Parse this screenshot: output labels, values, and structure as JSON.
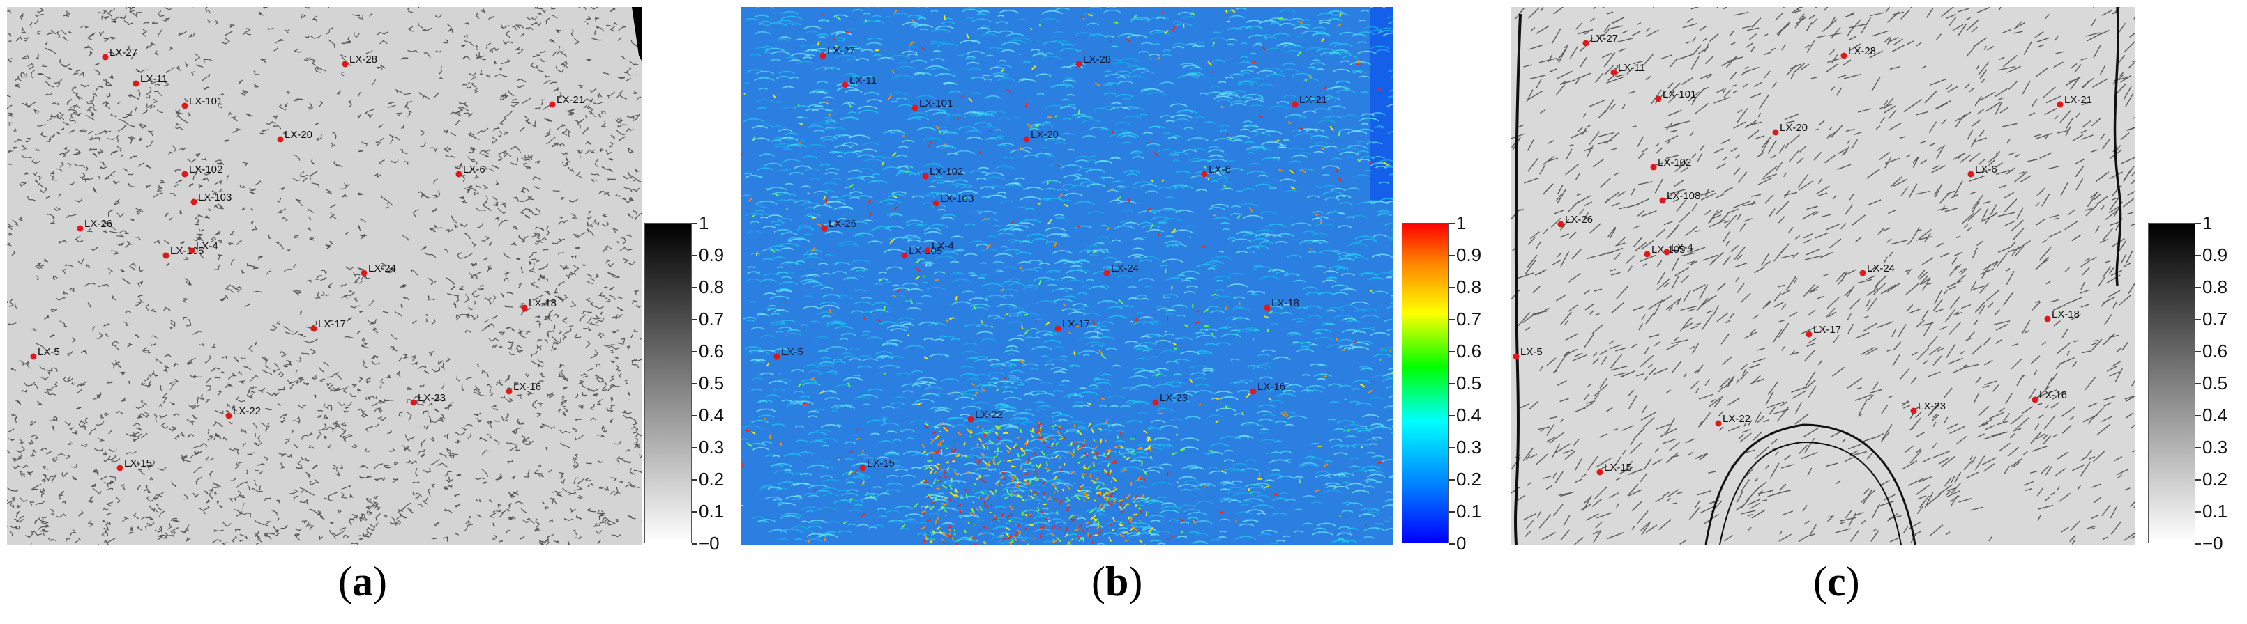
{
  "panels": [
    {
      "id": "a",
      "caption": "a"
    },
    {
      "id": "b",
      "caption": "b"
    },
    {
      "id": "c",
      "caption": "c"
    }
  ],
  "colorbar_gray": {
    "ticks": [
      "1",
      "0.9",
      "0.8",
      "0.7",
      "0.6",
      "0.5",
      "0.4",
      "0.3",
      "0.2",
      "0.1",
      "−0"
    ]
  },
  "colorbar_jet": {
    "ticks": [
      "1",
      "0.9",
      "0.8",
      "0.7",
      "0.6",
      "0.5",
      "0.4",
      "0.3",
      "0.2",
      "0.1",
      "0"
    ]
  },
  "colors": {
    "marker": "#e01818",
    "gray_bg": "#d6d6d6",
    "jet_bg": "#3a8ce8"
  },
  "markers": {
    "LX-27": "LX-27",
    "LX-11": "LX-11",
    "LX-101": "LX-101",
    "LX-28": "LX-28",
    "LX-21": "LX-21",
    "LX-20": "LX-20",
    "LX-102": "LX-102",
    "LX-6": "LX-6",
    "LX-103": "LX-103",
    "LX-26": "LX-26",
    "LX-105": "LX-105",
    "LX-4": "LX-4",
    "LX-24": "LX-24",
    "LX-18": "LX-18",
    "LX-17": "LX-17",
    "LX-5": "LX-5",
    "LX-16": "LX-16",
    "LX-23": "LX-23",
    "LX-22": "LX-22",
    "LX-15": "LX-15",
    "LX-108": "LX-108"
  }
}
